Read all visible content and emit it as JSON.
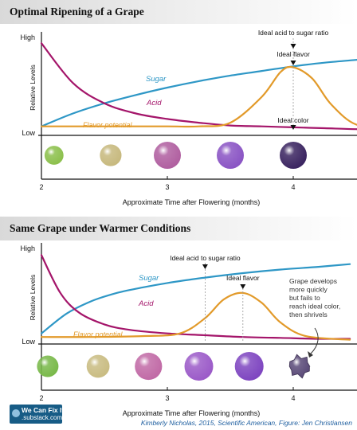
{
  "colors": {
    "sugar": "#2e97c6",
    "acid": "#a4156a",
    "flavor": "#e29a2a",
    "axis": "#111111",
    "marker": "#444444",
    "header_gray": "#d9d9d9"
  },
  "labels": {
    "high": "High",
    "low": "Low",
    "y_label": "Relative Levels",
    "x_label": "Approximate Time after Flowering (months)",
    "sugar": "Sugar",
    "acid": "Acid",
    "flavor": "Flavor potential"
  },
  "chart_data": [
    {
      "type": "line",
      "title": "Optimal Ripening of a Grape",
      "xlabel": "Approximate Time after Flowering (months)",
      "ylabel": "Relative Levels",
      "xlim": [
        2,
        4.75
      ],
      "ylim": [
        0,
        1
      ],
      "x_ticks": [
        "2",
        "3",
        "4"
      ],
      "y_ticks": [
        "High",
        "Low"
      ],
      "series": [
        {
          "name": "Sugar",
          "x": [
            2,
            2.25,
            2.5,
            2.75,
            3,
            3.25,
            3.5,
            3.75,
            4,
            4.25,
            4.5,
            4.75
          ],
          "y": [
            0.08,
            0.22,
            0.33,
            0.42,
            0.5,
            0.57,
            0.63,
            0.68,
            0.73,
            0.77,
            0.8,
            0.83
          ]
        },
        {
          "name": "Acid",
          "x": [
            2,
            2.25,
            2.5,
            2.75,
            3,
            3.25,
            3.5,
            3.75,
            4,
            4.25,
            4.5,
            4.75
          ],
          "y": [
            0.98,
            0.55,
            0.33,
            0.22,
            0.16,
            0.12,
            0.09,
            0.08,
            0.07,
            0.06,
            0.05,
            0.05
          ]
        },
        {
          "name": "Flavor potential",
          "x": [
            2,
            2.5,
            3,
            3.25,
            3.5,
            3.75,
            3.9,
            4,
            4.15,
            4.3,
            4.5,
            4.75
          ],
          "y": [
            0.08,
            0.08,
            0.08,
            0.08,
            0.12,
            0.4,
            0.67,
            0.72,
            0.6,
            0.32,
            0.1,
            0.09
          ]
        }
      ],
      "annotations": [
        {
          "text": "Ideal acid to sugar ratio",
          "x": 4,
          "y": 0.73
        },
        {
          "text": "Ideal flavor",
          "x": 4,
          "y": 0.72
        },
        {
          "text": "Ideal color",
          "x": 4,
          "y": 0.07
        }
      ],
      "grapes": [
        {
          "x": 2.1,
          "color": "#8cc04c",
          "size": 0.7
        },
        {
          "x": 2.55,
          "color": "#c7b97e",
          "size": 0.8
        },
        {
          "x": 3.0,
          "color": "#b05fa0",
          "size": 1.0
        },
        {
          "x": 3.5,
          "color": "#8a54c4",
          "size": 1.0
        },
        {
          "x": 4.0,
          "color": "#3a2460",
          "size": 1.0
        }
      ],
      "grid": false
    },
    {
      "type": "line",
      "title": "Same Grape under Warmer Conditions",
      "xlabel": "Approximate Time after Flowering (months)",
      "ylabel": "Relative Levels",
      "xlim": [
        2,
        4.45
      ],
      "ylim": [
        0,
        1
      ],
      "x_ticks": [
        "2",
        "3",
        "4"
      ],
      "y_ticks": [
        "High",
        "Low"
      ],
      "series": [
        {
          "name": "Sugar",
          "x": [
            2,
            2.2,
            2.4,
            2.6,
            2.8,
            3,
            3.3,
            3.6,
            3.9,
            4.2,
            4.45
          ],
          "y": [
            0.1,
            0.32,
            0.46,
            0.55,
            0.61,
            0.66,
            0.72,
            0.77,
            0.81,
            0.84,
            0.87
          ]
        },
        {
          "name": "Acid",
          "x": [
            2,
            2.15,
            2.3,
            2.5,
            2.7,
            3,
            3.3,
            3.6,
            3.9,
            4.2,
            4.45
          ],
          "y": [
            0.97,
            0.55,
            0.33,
            0.2,
            0.14,
            0.1,
            0.08,
            0.06,
            0.05,
            0.04,
            0.04
          ]
        },
        {
          "name": "Flavor potential",
          "x": [
            2,
            2.4,
            2.8,
            3.1,
            3.3,
            3.45,
            3.6,
            3.75,
            3.9,
            4.1,
            4.45
          ],
          "y": [
            0.06,
            0.06,
            0.07,
            0.1,
            0.27,
            0.48,
            0.55,
            0.44,
            0.22,
            0.07,
            0.03
          ]
        }
      ],
      "annotations": [
        {
          "text": "Ideal acid to sugar ratio",
          "x": 3.3,
          "y": 0.72
        },
        {
          "text": "Ideal flavor",
          "x": 3.6,
          "y": 0.55
        },
        {
          "text": "Grape develops more quickly but fails to reach ideal color, then shrivels",
          "x": 4.2,
          "y": 0.04
        }
      ],
      "grapes": [
        {
          "x": 2.05,
          "color": "#79b94a",
          "size": 0.75
        },
        {
          "x": 2.45,
          "color": "#c9bc82",
          "size": 0.8
        },
        {
          "x": 2.85,
          "color": "#c16aa6",
          "size": 0.95
        },
        {
          "x": 3.25,
          "color": "#9b5ac8",
          "size": 1.0
        },
        {
          "x": 3.65,
          "color": "#7e45c0",
          "size": 1.0
        },
        {
          "x": 4.05,
          "color": "#5a4a78",
          "size": 0.85,
          "shriveled": true
        }
      ],
      "grid": false
    }
  ],
  "footer": {
    "logo_line1": "We Can Fix It",
    "logo_line2": ".substack.com",
    "credit": "Kimberly Nicholas, 2015, Scientific American, Figure: Jen Christiansen"
  }
}
